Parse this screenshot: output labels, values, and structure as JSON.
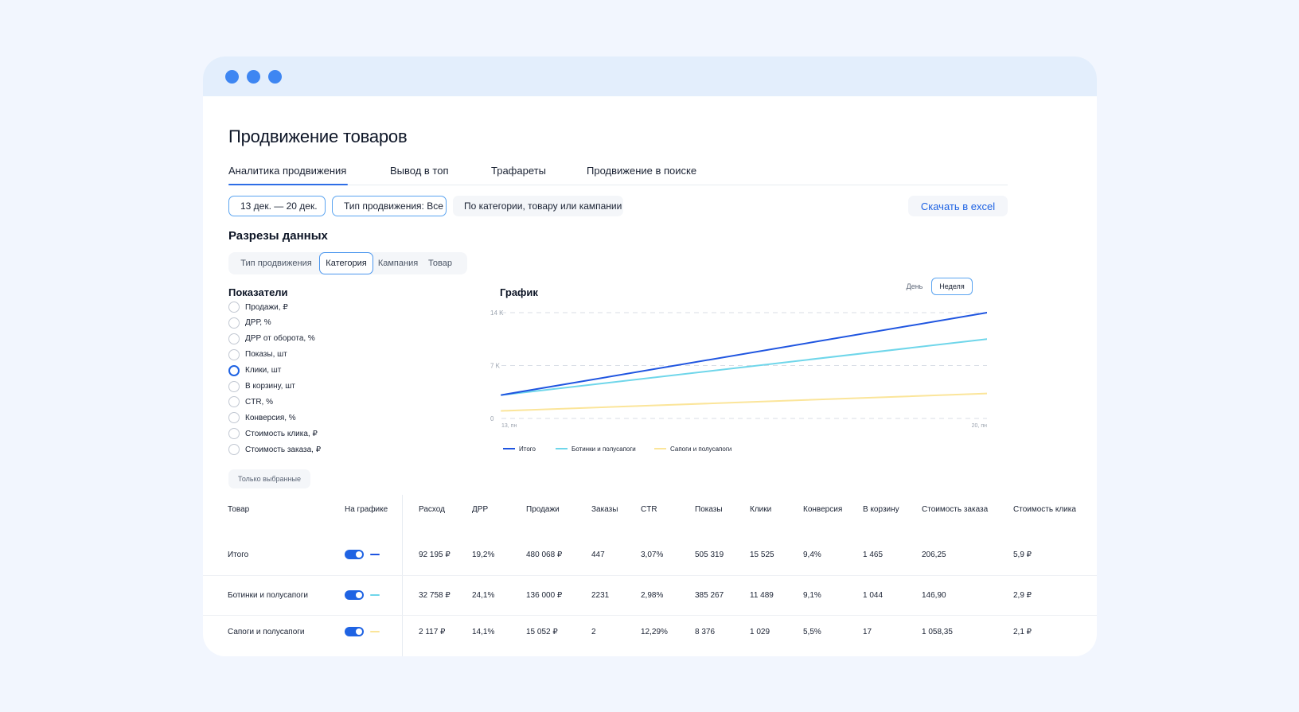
{
  "window": {
    "controls": [
      "window-dot",
      "window-dot",
      "window-dot"
    ]
  },
  "page": {
    "title": "Продвижение товаров"
  },
  "tabs": [
    {
      "label": "Аналитика продвижения",
      "active": true
    },
    {
      "label": "Вывод в топ",
      "active": false
    },
    {
      "label": "Трафареты",
      "active": false
    },
    {
      "label": "Продвижение в поиске",
      "active": false
    }
  ],
  "filters": {
    "date": "13 дек. — 20 дек.",
    "promo_type": "Тип продвижения: Все",
    "search": "По категории, товару или кампании",
    "download": "Скачать в excel"
  },
  "slices": {
    "title": "Разрезы данных",
    "options": [
      "Тип продвижения",
      "Категория",
      "Кампания",
      "Товар"
    ],
    "selected": "Категория"
  },
  "metrics": {
    "title": "Показатели",
    "items": [
      {
        "label": "Продажи, ₽",
        "checked": false
      },
      {
        "label": "ДРР, %",
        "checked": false
      },
      {
        "label": "ДРР от оборота, %",
        "checked": false
      },
      {
        "label": "Показы, шт",
        "checked": false
      },
      {
        "label": "Клики, шт",
        "checked": true
      },
      {
        "label": "В корзину, шт",
        "checked": false
      },
      {
        "label": "CTR, %",
        "checked": false
      },
      {
        "label": "Конверсия, %",
        "checked": false
      },
      {
        "label": "Стоимость клика, ₽",
        "checked": false
      },
      {
        "label": "Стоимость заказа, ₽",
        "checked": false
      }
    ],
    "only_selected": "Только выбранные"
  },
  "chart_section": {
    "title": "График",
    "range_options": [
      "День",
      "Неделя"
    ],
    "range_selected": "Неделя"
  },
  "chart_data": {
    "type": "line",
    "x": [
      "13, пн",
      "20, пн"
    ],
    "y_ticks": [
      "0",
      "7 K",
      "14 K"
    ],
    "ylim": [
      0,
      14000
    ],
    "grid": true,
    "legend_position": "bottom-left",
    "series": [
      {
        "name": "Итого",
        "color": "#1f55e0",
        "values": [
          3100,
          14000
        ]
      },
      {
        "name": "Ботинки и полусапоги",
        "color": "#6fd6ea",
        "values": [
          3100,
          10500
        ]
      },
      {
        "name": "Сапоги и полусапоги",
        "color": "#fbe59a",
        "values": [
          1000,
          3300
        ]
      }
    ]
  },
  "table": {
    "columns": [
      "Товар",
      "На графике",
      "Расход",
      "ДРР",
      "Продажи",
      "Заказы",
      "CTR",
      "Показы",
      "Клики",
      "Конверсия",
      "В корзину",
      "Стоимость заказа",
      "Стоимость клика"
    ],
    "rows": [
      {
        "name": "Итого",
        "on_chart": true,
        "color": "#1f55e0",
        "values": [
          "92 195 ₽",
          "19,2%",
          "480 068 ₽",
          "447",
          "3,07%",
          "505 319",
          "15 525",
          "9,4%",
          "1 465",
          "206,25",
          "5,9 ₽"
        ]
      },
      {
        "name": "Ботинки и полусапоги",
        "on_chart": true,
        "color": "#6fd6ea",
        "values": [
          "32 758 ₽",
          "24,1%",
          "136 000 ₽",
          "2231",
          "2,98%",
          "385 267",
          "11 489",
          "9,1%",
          "1 044",
          "146,90",
          "2,9 ₽"
        ]
      },
      {
        "name": "Сапоги и полусапоги",
        "on_chart": true,
        "color": "#fbe59a",
        "values": [
          "2 117 ₽",
          "14,1%",
          "15 052 ₽",
          "2",
          "12,29%",
          "8 376",
          "1 029",
          "5,5%",
          "17",
          "1 058,35",
          "2,1 ₽"
        ]
      }
    ]
  }
}
